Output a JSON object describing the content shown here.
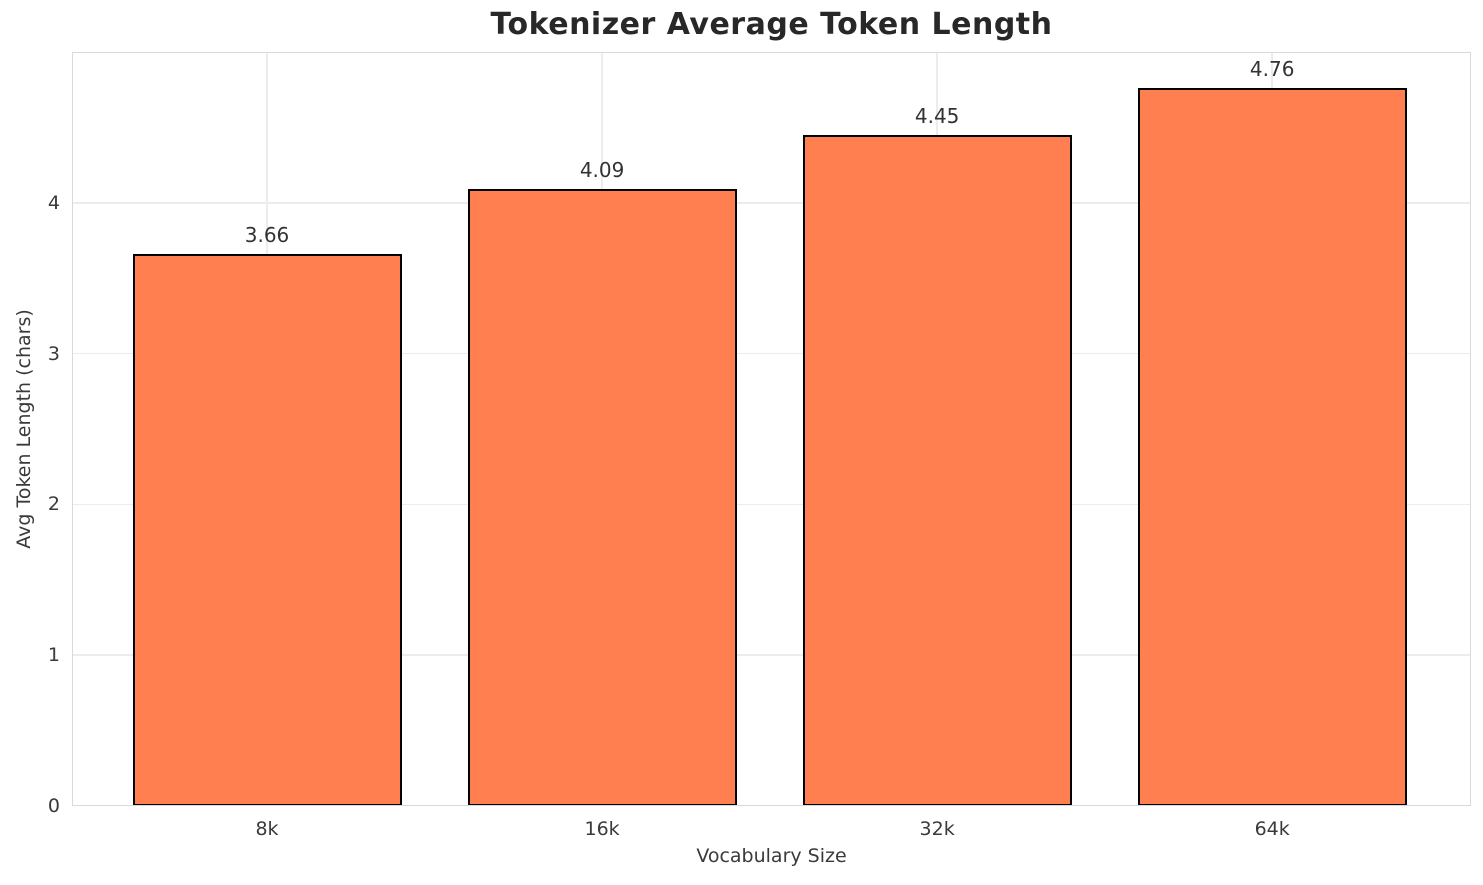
{
  "chart_data": {
    "type": "bar",
    "title": "Tokenizer Average Token Length",
    "xlabel": "Vocabulary Size",
    "ylabel": "Avg Token Length (chars)",
    "categories": [
      "8k",
      "16k",
      "32k",
      "64k"
    ],
    "values": [
      3.66,
      4.09,
      4.45,
      4.76
    ],
    "value_labels": [
      "3.66",
      "4.09",
      "4.45",
      "4.76"
    ],
    "ylim": [
      0,
      5
    ],
    "yticks": [
      0,
      1,
      2,
      3,
      4
    ],
    "ytick_labels": [
      "0",
      "1",
      "2",
      "3",
      "4"
    ],
    "grid": true,
    "legend": null,
    "bar_color": "#FF7F50",
    "bar_edge_color": "#000000",
    "grid_color": "#ececec",
    "spine_color": "#d9d9d9",
    "background_color": "#ffffff",
    "text_color": "#3a3a3a",
    "title_color": "#282828"
  }
}
